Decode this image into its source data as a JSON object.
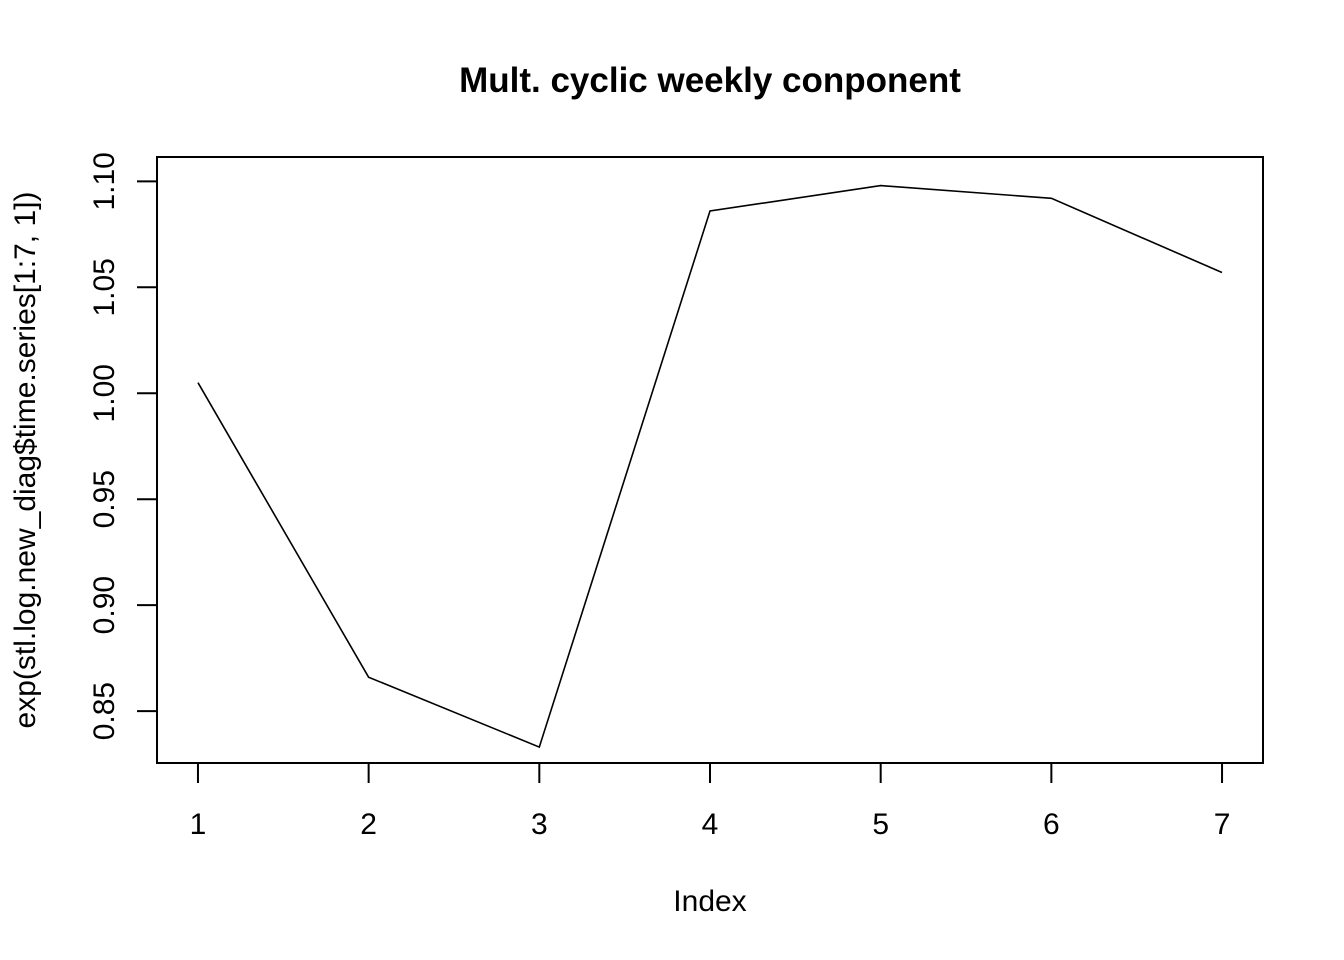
{
  "chart_data": {
    "type": "line",
    "title": "Mult. cyclic weekly conponent",
    "xlabel": "Index",
    "ylabel": "exp(stl.log.new_diag$time.series[1:7, 1])",
    "x": [
      1,
      2,
      3,
      4,
      5,
      6,
      7
    ],
    "series": [
      {
        "values": [
          1.005,
          0.866,
          0.833,
          1.086,
          1.098,
          1.092,
          1.057
        ]
      }
    ],
    "xlim": [
      0.76,
      7.24
    ],
    "ylim": [
      0.8255,
      1.1115
    ],
    "x_ticks": [
      {
        "value": 1,
        "label": "1"
      },
      {
        "value": 2,
        "label": "2"
      },
      {
        "value": 3,
        "label": "3"
      },
      {
        "value": 4,
        "label": "4"
      },
      {
        "value": 5,
        "label": "5"
      },
      {
        "value": 6,
        "label": "6"
      },
      {
        "value": 7,
        "label": "7"
      }
    ],
    "y_ticks": [
      {
        "value": 0.85,
        "label": "0.85"
      },
      {
        "value": 0.9,
        "label": "0.90"
      },
      {
        "value": 0.95,
        "label": "0.95"
      },
      {
        "value": 1.0,
        "label": "1.00"
      },
      {
        "value": 1.05,
        "label": "1.05"
      },
      {
        "value": 1.1,
        "label": "1.10"
      }
    ],
    "grid": false,
    "line_color": "#000000"
  }
}
